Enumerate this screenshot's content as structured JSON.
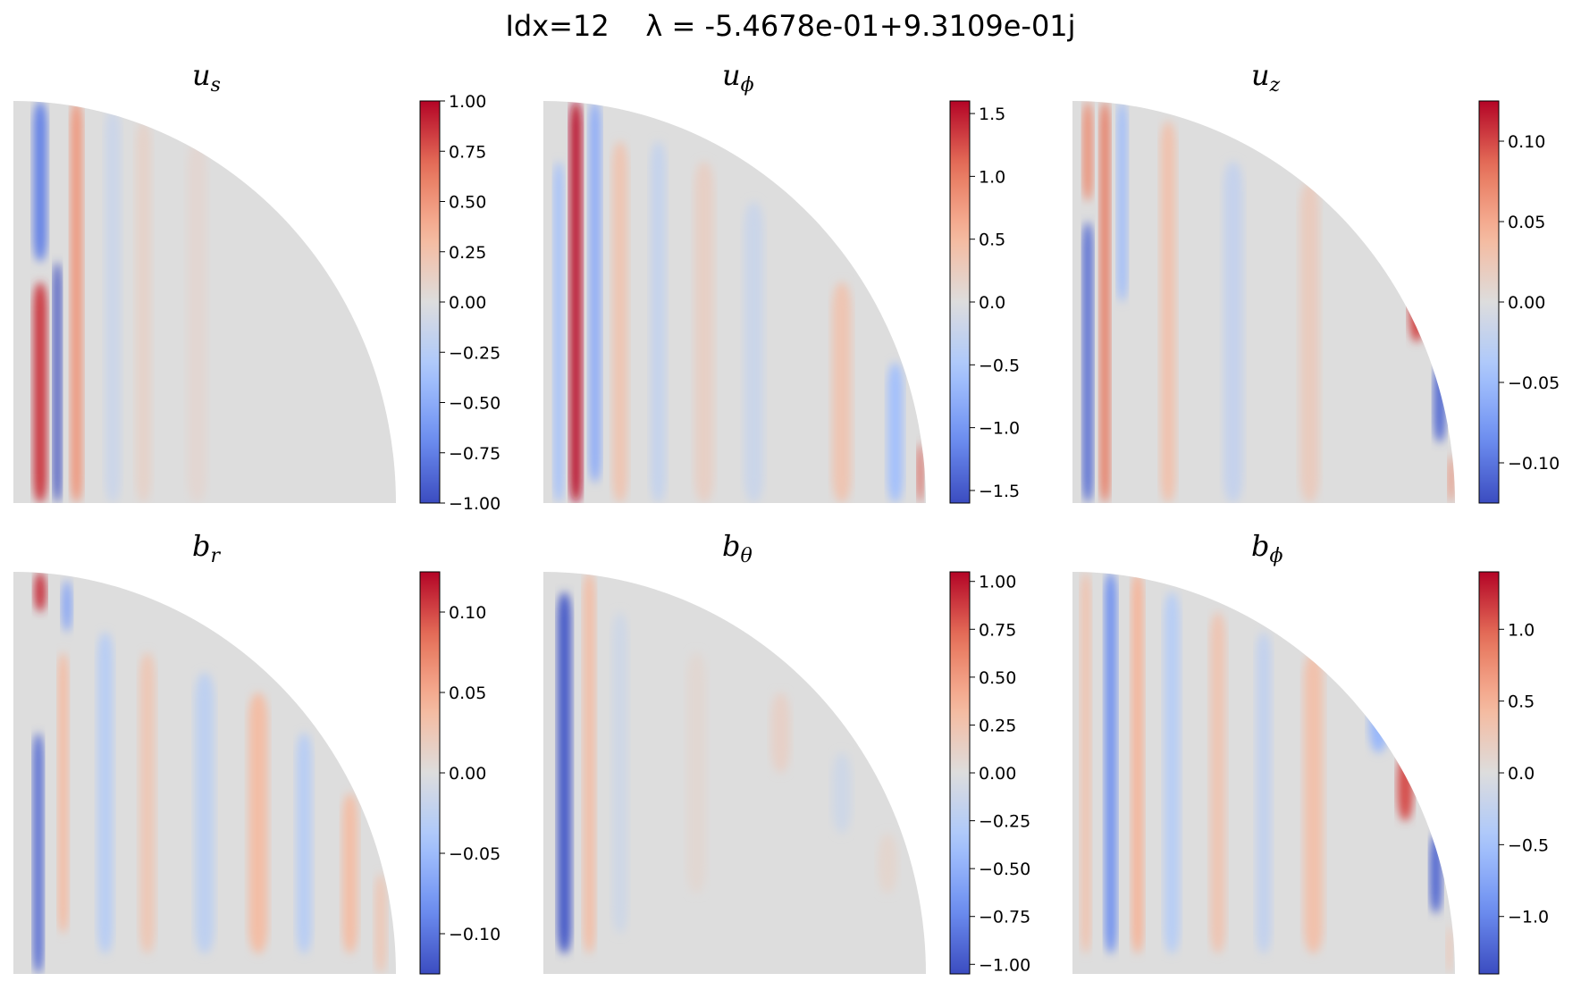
{
  "figure": {
    "title": "Idx=12    λ = -5.4678e-01+9.3109e-01j"
  },
  "colormap": {
    "name": "coolwarm",
    "stops": [
      "#3b4cc0",
      "#6f91f2",
      "#aac7fd",
      "#dddddd",
      "#f7b89c",
      "#e7745b",
      "#b40426"
    ]
  },
  "chart_data": [
    {
      "type": "heatmap",
      "title_base": "u",
      "title_sub": "s",
      "colorbar": {
        "range": [
          -1.0,
          1.0
        ],
        "ticks": [
          1.0,
          0.75,
          0.5,
          0.25,
          0.0,
          -0.25,
          -0.5,
          -0.75,
          -1.0
        ],
        "tick_labels": [
          "1.00",
          "0.75",
          "0.50",
          "0.25",
          "0.00",
          "−0.25",
          "−0.50",
          "−0.75",
          "−1.00"
        ]
      },
      "features": [
        {
          "x": 0.07,
          "w": 0.035,
          "z0": 0.0,
          "z1": 0.55,
          "v": 0.85
        },
        {
          "x": 0.07,
          "w": 0.035,
          "z0": 0.6,
          "z1": 1.0,
          "v": -0.75
        },
        {
          "x": 0.115,
          "w": 0.02,
          "z0": 0.0,
          "z1": 0.6,
          "v": -1.0
        },
        {
          "x": 0.165,
          "w": 0.03,
          "z0": 0.0,
          "z1": 1.0,
          "v": 0.5
        },
        {
          "x": 0.26,
          "w": 0.04,
          "z0": 0.0,
          "z1": 0.98,
          "v": -0.12
        },
        {
          "x": 0.34,
          "w": 0.04,
          "z0": 0.0,
          "z1": 0.95,
          "v": 0.1
        },
        {
          "x": 0.48,
          "w": 0.05,
          "z0": 0.0,
          "z1": 0.9,
          "v": 0.06
        }
      ]
    },
    {
      "type": "heatmap",
      "title_base": "u",
      "title_sub": "ϕ",
      "colorbar": {
        "range": [
          -1.6,
          1.6
        ],
        "ticks": [
          1.5,
          1.0,
          0.5,
          0.0,
          -0.5,
          -1.0,
          -1.5
        ],
        "tick_labels": [
          "1.5",
          "1.0",
          "0.5",
          "0.0",
          "−0.5",
          "−1.0",
          "−1.5"
        ]
      },
      "features": [
        {
          "x": 0.04,
          "w": 0.025,
          "z0": 0.0,
          "z1": 0.85,
          "v": -0.6
        },
        {
          "x": 0.085,
          "w": 0.03,
          "z0": 0.0,
          "z1": 1.0,
          "v": 1.55
        },
        {
          "x": 0.135,
          "w": 0.03,
          "z0": 0.05,
          "z1": 1.0,
          "v": -0.8
        },
        {
          "x": 0.2,
          "w": 0.04,
          "z0": 0.0,
          "z1": 0.9,
          "v": 0.35
        },
        {
          "x": 0.3,
          "w": 0.04,
          "z0": 0.0,
          "z1": 0.9,
          "v": -0.25
        },
        {
          "x": 0.42,
          "w": 0.05,
          "z0": 0.0,
          "z1": 0.85,
          "v": 0.2
        },
        {
          "x": 0.55,
          "w": 0.05,
          "z0": 0.0,
          "z1": 0.75,
          "v": -0.2
        },
        {
          "x": 0.78,
          "w": 0.05,
          "z0": 0.0,
          "z1": 0.55,
          "v": 0.35
        },
        {
          "x": 0.92,
          "w": 0.04,
          "z0": 0.0,
          "z1": 0.35,
          "v": -0.6
        },
        {
          "x": 0.985,
          "w": 0.015,
          "z0": 0.0,
          "z1": 0.15,
          "v": 1.2
        }
      ]
    },
    {
      "type": "heatmap",
      "title_base": "u",
      "title_sub": "z",
      "colorbar": {
        "range": [
          -0.125,
          0.125
        ],
        "ticks": [
          0.1,
          0.05,
          0.0,
          -0.05,
          -0.1
        ],
        "tick_labels": [
          "0.10",
          "0.05",
          "0.00",
          "−0.05",
          "−0.10"
        ]
      },
      "features": [
        {
          "x": 0.04,
          "w": 0.025,
          "z0": 0.0,
          "z1": 0.7,
          "v": -0.11
        },
        {
          "x": 0.04,
          "w": 0.025,
          "z0": 0.75,
          "z1": 1.0,
          "v": 0.07
        },
        {
          "x": 0.085,
          "w": 0.025,
          "z0": 0.0,
          "z1": 1.0,
          "v": 0.08
        },
        {
          "x": 0.13,
          "w": 0.025,
          "z0": 0.5,
          "z1": 1.0,
          "v": -0.05
        },
        {
          "x": 0.25,
          "w": 0.04,
          "z0": 0.0,
          "z1": 0.95,
          "v": 0.03
        },
        {
          "x": 0.42,
          "w": 0.05,
          "z0": 0.0,
          "z1": 0.85,
          "v": -0.02
        },
        {
          "x": 0.62,
          "w": 0.05,
          "z0": 0.0,
          "z1": 0.8,
          "v": 0.02
        },
        {
          "x": 0.83,
          "w": 0.04,
          "z0": 0.6,
          "z1": 0.75,
          "v": -0.08
        },
        {
          "x": 0.9,
          "w": 0.04,
          "z0": 0.4,
          "z1": 0.58,
          "v": 0.1
        },
        {
          "x": 0.96,
          "w": 0.03,
          "z0": 0.15,
          "z1": 0.35,
          "v": -0.11
        },
        {
          "x": 0.99,
          "w": 0.015,
          "z0": 0.0,
          "z1": 0.12,
          "v": 0.07
        }
      ]
    },
    {
      "type": "heatmap",
      "title_base": "b",
      "title_sub": "r",
      "colorbar": {
        "range": [
          -0.125,
          0.125
        ],
        "ticks": [
          0.1,
          0.05,
          0.0,
          -0.05,
          -0.1
        ],
        "tick_labels": [
          "0.10",
          "0.05",
          "0.00",
          "−0.05",
          "−0.10"
        ]
      },
      "features": [
        {
          "x": 0.07,
          "w": 0.03,
          "z0": 0.9,
          "z1": 1.0,
          "v": 0.11
        },
        {
          "x": 0.14,
          "w": 0.025,
          "z0": 0.85,
          "z1": 0.98,
          "v": -0.07
        },
        {
          "x": 0.065,
          "w": 0.025,
          "z0": 0.0,
          "z1": 0.6,
          "v": -0.11
        },
        {
          "x": 0.13,
          "w": 0.025,
          "z0": 0.1,
          "z1": 0.8,
          "v": 0.04
        },
        {
          "x": 0.24,
          "w": 0.04,
          "z0": 0.05,
          "z1": 0.85,
          "v": -0.03
        },
        {
          "x": 0.35,
          "w": 0.04,
          "z0": 0.05,
          "z1": 0.8,
          "v": 0.025
        },
        {
          "x": 0.5,
          "w": 0.05,
          "z0": 0.05,
          "z1": 0.75,
          "v": -0.025
        },
        {
          "x": 0.64,
          "w": 0.05,
          "z0": 0.05,
          "z1": 0.7,
          "v": 0.035
        },
        {
          "x": 0.76,
          "w": 0.04,
          "z0": 0.05,
          "z1": 0.6,
          "v": -0.03
        },
        {
          "x": 0.88,
          "w": 0.04,
          "z0": 0.05,
          "z1": 0.45,
          "v": 0.035
        },
        {
          "x": 0.96,
          "w": 0.03,
          "z0": 0.0,
          "z1": 0.25,
          "v": 0.025
        }
      ]
    },
    {
      "type": "heatmap",
      "title_base": "b",
      "title_sub": "θ",
      "colorbar": {
        "range": [
          -1.05,
          1.05
        ],
        "ticks": [
          1.0,
          0.75,
          0.5,
          0.25,
          0.0,
          -0.25,
          -0.5,
          -0.75,
          -1.0
        ],
        "tick_labels": [
          "1.00",
          "0.75",
          "0.50",
          "0.25",
          "0.00",
          "−0.25",
          "−0.50",
          "−0.75",
          "−1.00"
        ]
      },
      "features": [
        {
          "x": 0.055,
          "w": 0.035,
          "z0": 0.05,
          "z1": 0.95,
          "v": -1.0
        },
        {
          "x": 0.12,
          "w": 0.03,
          "z0": 0.05,
          "z1": 1.0,
          "v": 0.3
        },
        {
          "x": 0.2,
          "w": 0.04,
          "z0": 0.1,
          "z1": 0.9,
          "v": -0.1
        },
        {
          "x": 0.4,
          "w": 0.05,
          "z0": 0.2,
          "z1": 0.8,
          "v": 0.06
        },
        {
          "x": 0.62,
          "w": 0.05,
          "z0": 0.5,
          "z1": 0.7,
          "v": 0.12
        },
        {
          "x": 0.78,
          "w": 0.05,
          "z0": 0.35,
          "z1": 0.55,
          "v": -0.1
        },
        {
          "x": 0.9,
          "w": 0.05,
          "z0": 0.2,
          "z1": 0.35,
          "v": 0.08
        }
      ]
    },
    {
      "type": "heatmap",
      "title_base": "b",
      "title_sub": "ϕ",
      "colorbar": {
        "range": [
          -1.4,
          1.4
        ],
        "ticks": [
          1.0,
          0.5,
          0.0,
          -0.5,
          -1.0
        ],
        "tick_labels": [
          "1.0",
          "0.5",
          "0.0",
          "−0.5",
          "−1.0"
        ]
      },
      "features": [
        {
          "x": 0.035,
          "w": 0.025,
          "z0": 0.05,
          "z1": 1.0,
          "v": 0.35
        },
        {
          "x": 0.1,
          "w": 0.03,
          "z0": 0.05,
          "z1": 1.0,
          "v": -0.95
        },
        {
          "x": 0.17,
          "w": 0.03,
          "z0": 0.05,
          "z1": 1.0,
          "v": 0.5
        },
        {
          "x": 0.26,
          "w": 0.04,
          "z0": 0.05,
          "z1": 0.95,
          "v": -0.35
        },
        {
          "x": 0.38,
          "w": 0.04,
          "z0": 0.05,
          "z1": 0.9,
          "v": 0.3
        },
        {
          "x": 0.5,
          "w": 0.04,
          "z0": 0.05,
          "z1": 0.85,
          "v": -0.25
        },
        {
          "x": 0.63,
          "w": 0.05,
          "z0": 0.05,
          "z1": 0.8,
          "v": 0.35
        },
        {
          "x": 0.8,
          "w": 0.05,
          "z0": 0.55,
          "z1": 0.7,
          "v": -0.6
        },
        {
          "x": 0.87,
          "w": 0.04,
          "z0": 0.38,
          "z1": 0.55,
          "v": 1.1
        },
        {
          "x": 0.95,
          "w": 0.03,
          "z0": 0.15,
          "z1": 0.35,
          "v": -1.25
        },
        {
          "x": 0.985,
          "w": 0.015,
          "z0": 0.0,
          "z1": 0.12,
          "v": 0.3
        }
      ]
    }
  ]
}
